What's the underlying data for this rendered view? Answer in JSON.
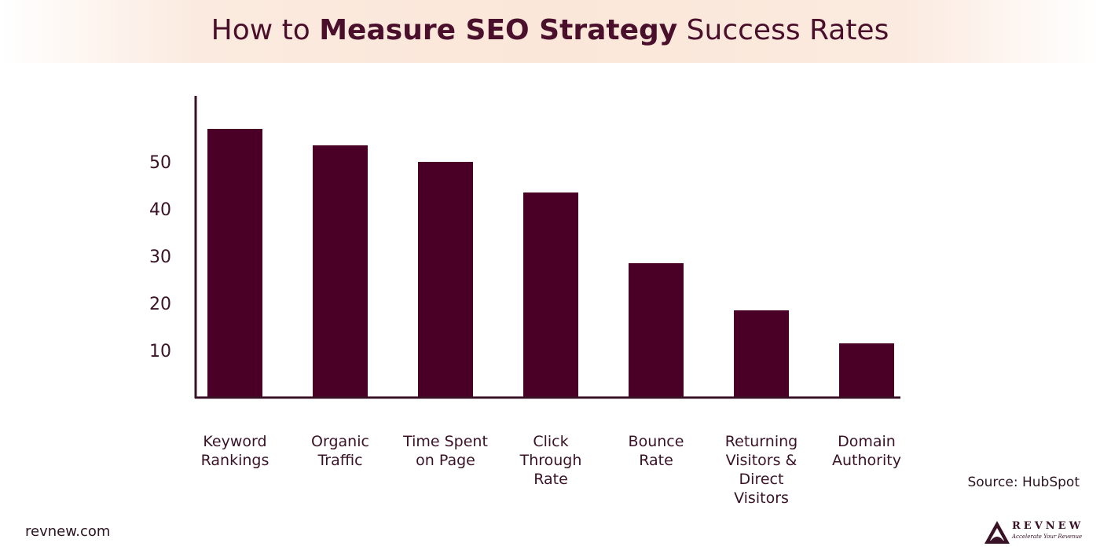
{
  "title": {
    "prefix": "How to ",
    "bold": "Measure SEO Strategy",
    "suffix": " Success Rates"
  },
  "chart_data": {
    "type": "bar",
    "categories": [
      [
        "Keyword",
        "Rankings"
      ],
      [
        "Organic",
        "Traffic"
      ],
      [
        "Time Spent",
        "on Page"
      ],
      [
        "Click",
        "Through",
        "Rate"
      ],
      [
        "Bounce",
        "Rate"
      ],
      [
        "Returning",
        "Visitors &",
        "Direct",
        "Visitors"
      ],
      [
        "Domain",
        "Authority"
      ]
    ],
    "values": [
      57,
      53.5,
      50,
      43.5,
      28.5,
      18.5,
      11.5
    ],
    "yticks": [
      10,
      20,
      30,
      40,
      50
    ],
    "ylim": [
      0,
      60
    ],
    "bar_color": "#4a0026",
    "grid": false,
    "legend": "none"
  },
  "source": "Source:  HubSpot",
  "footer": "revnew.com",
  "logo": {
    "name": "REVNEW",
    "tagline": "Accelerate Your Revenue"
  },
  "colors": {
    "title_text": "#4a0f2b",
    "axis": "#3a1226"
  }
}
